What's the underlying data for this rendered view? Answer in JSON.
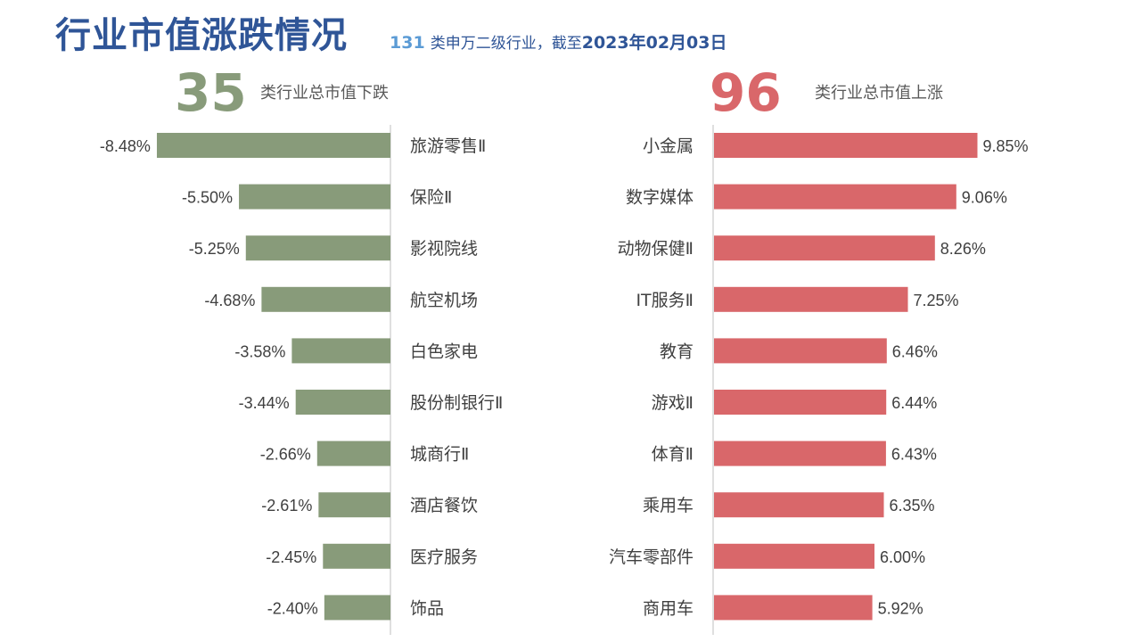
{
  "header": {
    "title": "行业市值涨跌情况",
    "subtitle_count": "131",
    "subtitle_text": "类申万二级行业，截至",
    "subtitle_date": "2023年02月03日"
  },
  "down_panel": {
    "count": "35",
    "label": "类行业总市值下跌"
  },
  "up_panel": {
    "count": "96",
    "label": "类行业总市值上涨"
  },
  "colors": {
    "down": "#889b7a",
    "up": "#d9676a",
    "title": "#2f5597",
    "axis": "#bfbfbf",
    "text": "#404040"
  },
  "chart_data": [
    {
      "type": "bar",
      "orientation": "horizontal",
      "categories": [
        "旅游零售Ⅱ",
        "保险Ⅱ",
        "影视院线",
        "航空机场",
        "白色家电",
        "股份制银行Ⅱ",
        "城商行Ⅱ",
        "酒店餐饮",
        "医疗服务",
        "饰品"
      ],
      "values": [
        -8.48,
        -5.5,
        -5.25,
        -4.68,
        -3.58,
        -3.44,
        -2.66,
        -2.61,
        -2.45,
        -2.4
      ],
      "value_labels": [
        "-8.48%",
        "-5.50%",
        "-5.25%",
        "-4.68%",
        "-3.58%",
        "-3.44%",
        "-2.66%",
        "-2.61%",
        "-2.45%",
        "-2.40%"
      ],
      "unit": "%"
    },
    {
      "type": "bar",
      "orientation": "horizontal",
      "categories": [
        "小金属",
        "数字媒体",
        "动物保健Ⅱ",
        "IT服务Ⅱ",
        "教育",
        "游戏Ⅱ",
        "体育Ⅱ",
        "乘用车",
        "汽车零部件",
        "商用车"
      ],
      "values": [
        9.85,
        9.06,
        8.26,
        7.25,
        6.46,
        6.44,
        6.43,
        6.35,
        6.0,
        5.92
      ],
      "value_labels": [
        "9.85%",
        "9.06%",
        "8.26%",
        "7.25%",
        "6.46%",
        "6.44%",
        "6.43%",
        "6.35%",
        "6.00%",
        "5.92%"
      ],
      "unit": "%"
    }
  ]
}
